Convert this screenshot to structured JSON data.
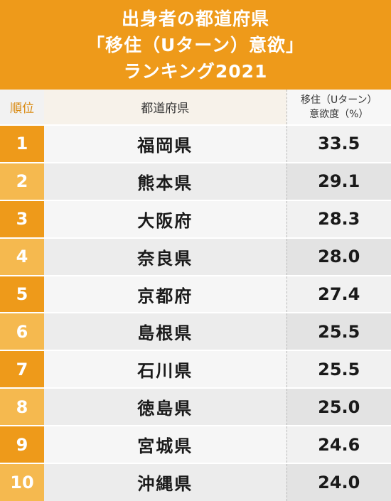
{
  "title": {
    "line1": "出身者の都道府県",
    "line2": "「移住（Uターン）意欲」",
    "line3": "ランキング2021"
  },
  "colors": {
    "accent": "#EE9A1A",
    "accent_light": "#F5B94F"
  },
  "chart_data": {
    "type": "table",
    "columns": [
      "順位",
      "都道府県",
      "移住（Uターン）意欲度（%）"
    ],
    "rows": [
      {
        "rank": "1",
        "prefecture": "福岡県",
        "value": "33.5"
      },
      {
        "rank": "2",
        "prefecture": "熊本県",
        "value": "29.1"
      },
      {
        "rank": "3",
        "prefecture": "大阪府",
        "value": "28.3"
      },
      {
        "rank": "4",
        "prefecture": "奈良県",
        "value": "28.0"
      },
      {
        "rank": "5",
        "prefecture": "京都府",
        "value": "27.4"
      },
      {
        "rank": "6",
        "prefecture": "島根県",
        "value": "25.5"
      },
      {
        "rank": "7",
        "prefecture": "石川県",
        "value": "25.5"
      },
      {
        "rank": "8",
        "prefecture": "徳島県",
        "value": "25.0"
      },
      {
        "rank": "9",
        "prefecture": "宮城県",
        "value": "24.6"
      },
      {
        "rank": "10",
        "prefecture": "沖縄県",
        "value": "24.0"
      }
    ]
  },
  "header": {
    "rank": "順位",
    "prefecture": "都道府県",
    "value_line1": "移住（Uターン）",
    "value_line2": "意欲度（%）"
  }
}
